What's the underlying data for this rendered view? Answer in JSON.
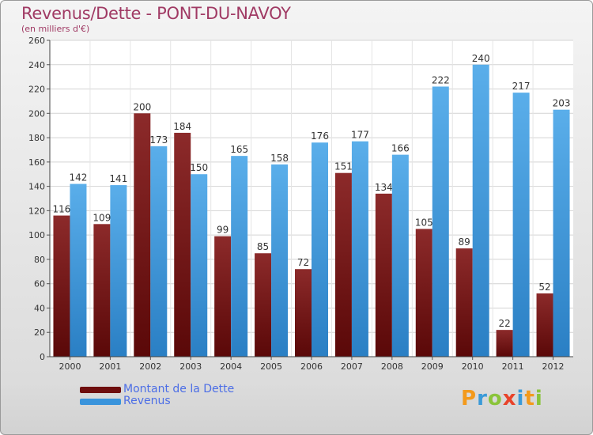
{
  "title": "Revenus/Dette - PONT-DU-NAVOY",
  "subtitle": "(en milliers d'€)",
  "colors": {
    "dette": "#7a1c1c",
    "revenus": "#3a94dc",
    "title": "#a03a64"
  },
  "legend": {
    "dette": "Montant de la Dette",
    "revenus": "Revenus"
  },
  "logo": {
    "text": "Proxiti",
    "letters": [
      "P",
      "r",
      "o",
      "x",
      "i",
      "t",
      "i"
    ]
  },
  "chart_data": {
    "type": "bar",
    "title": "Revenus/Dette - PONT-DU-NAVOY",
    "ylabel": "(en milliers d'€)",
    "categories": [
      "2000",
      "2001",
      "2002",
      "2003",
      "2004",
      "2005",
      "2006",
      "2007",
      "2008",
      "2009",
      "2010",
      "2011",
      "2012"
    ],
    "series": [
      {
        "name": "Montant de la Dette",
        "values": [
          116,
          109,
          200,
          184,
          99,
          85,
          72,
          151,
          134,
          105,
          89,
          22,
          52
        ]
      },
      {
        "name": "Revenus",
        "values": [
          142,
          141,
          173,
          150,
          165,
          158,
          176,
          177,
          166,
          222,
          240,
          217,
          203
        ]
      }
    ],
    "ylim": [
      0,
      260
    ],
    "yticks": [
      0,
      20,
      40,
      60,
      80,
      100,
      120,
      140,
      160,
      180,
      200,
      220,
      240,
      260
    ],
    "grid": true,
    "legend_position": "bottom-left"
  }
}
